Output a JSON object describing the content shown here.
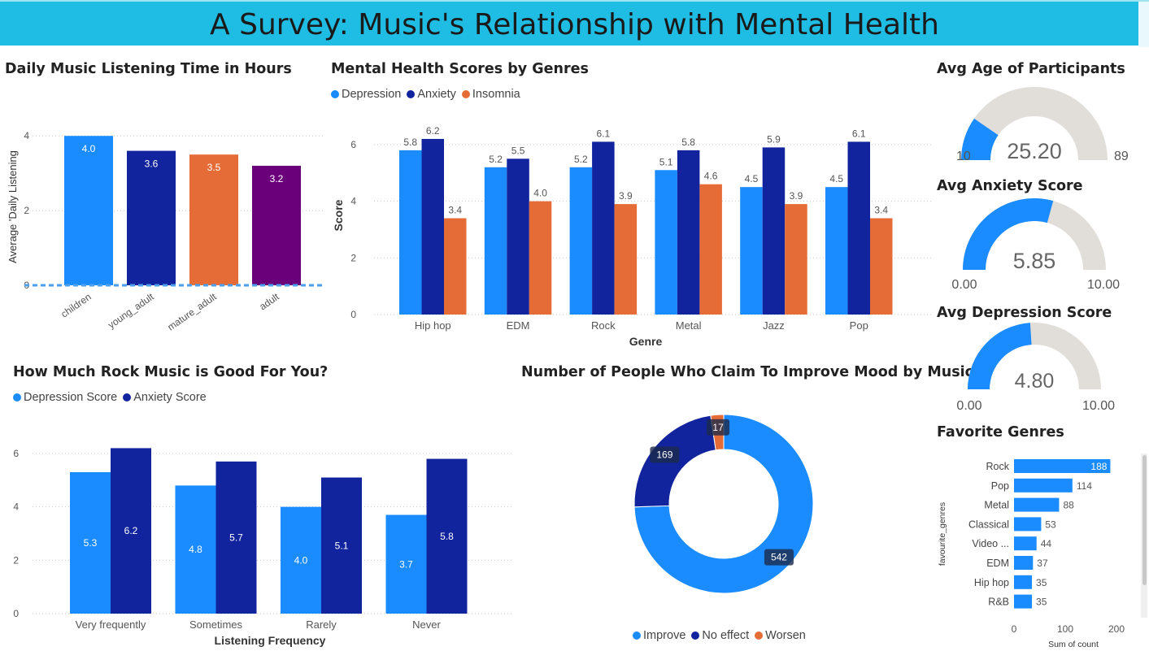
{
  "title": "A Survey: Music's Relationship with Mental Health",
  "colors": {
    "light_blue": "#1a8cff",
    "dark_blue": "#12239e",
    "orange": "#e66c37",
    "purple": "#6b007b",
    "gauge_bg": "#e1ddd9"
  },
  "daily": {
    "title": "Daily Music Listening Time in Hours",
    "chart_data": {
      "type": "bar",
      "categories": [
        "children",
        "young_adult",
        "mature_adult",
        "adult"
      ],
      "values": [
        4.0,
        3.6,
        3.5,
        3.2
      ],
      "value_labels": [
        "4.0",
        "3.6",
        "3.5",
        "3.2"
      ],
      "colors": [
        "#1a8cff",
        "#12239e",
        "#e66c37",
        "#6b007b"
      ],
      "ylabel": "Average 'Daily Listening",
      "yticks": [
        "0",
        "2",
        "4"
      ],
      "ylim": [
        0,
        4.2
      ]
    }
  },
  "genres": {
    "title": "Mental Health Scores by Genres",
    "chart_data": {
      "type": "bar",
      "categories": [
        "Hip hop",
        "EDM",
        "Rock",
        "Metal",
        "Jazz",
        "Pop"
      ],
      "series": [
        {
          "name": "Depression",
          "values": [
            5.8,
            5.2,
            5.2,
            5.1,
            4.5,
            4.5
          ],
          "labels": [
            "5.8",
            "5.2",
            "5.2",
            "5.1",
            "4.5",
            "4.5"
          ],
          "color": "#1a8cff"
        },
        {
          "name": "Anxiety",
          "values": [
            6.2,
            5.5,
            6.1,
            5.8,
            5.9,
            6.1
          ],
          "labels": [
            "6.2",
            "5.5",
            "6.1",
            "5.8",
            "5.9",
            "6.1"
          ],
          "color": "#12239e"
        },
        {
          "name": "Insomnia",
          "values": [
            3.4,
            4.0,
            3.9,
            4.6,
            3.9,
            3.4
          ],
          "labels": [
            "3.4",
            "4.0",
            "3.9",
            "4.6",
            "3.9",
            "3.4"
          ],
          "color": "#e66c37"
        }
      ],
      "xlabel": "Genre",
      "ylabel": "Score",
      "yticks": [
        "0",
        "2",
        "4",
        "6"
      ],
      "ylim": [
        0,
        6.6
      ]
    }
  },
  "rock": {
    "title": "How Much Rock Music is Good For You?",
    "chart_data": {
      "type": "bar",
      "categories": [
        "Very frequently",
        "Sometimes",
        "Rarely",
        "Never"
      ],
      "series": [
        {
          "name": "Depression Score",
          "values": [
            5.3,
            4.8,
            4.0,
            3.7
          ],
          "labels": [
            "5.3",
            "4.8",
            "4.0",
            "3.7"
          ],
          "color": "#1a8cff"
        },
        {
          "name": "Anxiety Score",
          "values": [
            6.2,
            5.7,
            5.1,
            5.8
          ],
          "labels": [
            "6.2",
            "5.7",
            "5.1",
            "5.8"
          ],
          "color": "#12239e"
        }
      ],
      "xlabel": "Listening Frequency",
      "yticks": [
        "0",
        "2",
        "4",
        "6"
      ],
      "ylim": [
        0,
        6.7
      ]
    }
  },
  "mood": {
    "title": "Number of People Who Claim To Improve Mood by Music",
    "chart_data": {
      "type": "pie",
      "donut": true,
      "slices": [
        {
          "name": "Improve",
          "value": 542,
          "label": "542",
          "color": "#1a8cff"
        },
        {
          "name": "No effect",
          "value": 169,
          "label": "169",
          "color": "#12239e"
        },
        {
          "name": "Worsen",
          "value": 17,
          "label": "17",
          "color": "#e66c37"
        }
      ]
    }
  },
  "gauges": [
    {
      "title": "Avg Age of Participants",
      "value": 25.2,
      "display": "25.20",
      "min": 10,
      "max": 89,
      "min_label": "10",
      "max_label": "89"
    },
    {
      "title": "Avg Anxiety Score",
      "value": 5.85,
      "display": "5.85",
      "min": 0,
      "max": 10,
      "min_label": "0.00",
      "max_label": "10.00"
    },
    {
      "title": "Avg Depression Score",
      "value": 4.8,
      "display": "4.80",
      "min": 0,
      "max": 10,
      "min_label": "0.00",
      "max_label": "10.00"
    }
  ],
  "favorites": {
    "title": "Favorite Genres",
    "chart_data": {
      "type": "bar",
      "orientation": "horizontal",
      "categories": [
        "Rock",
        "Pop",
        "Metal",
        "Classical",
        "Video ...",
        "EDM",
        "Hip hop",
        "R&B"
      ],
      "values": [
        188,
        114,
        88,
        53,
        44,
        37,
        35,
        35
      ],
      "value_labels": [
        "188",
        "114",
        "88",
        "53",
        "44",
        "37",
        "35",
        "35"
      ],
      "ylabel": "favourite_genres",
      "xlabel": "Sum of count",
      "xticks": [
        "0",
        "100",
        "200"
      ],
      "xlim": [
        0,
        200
      ]
    }
  }
}
